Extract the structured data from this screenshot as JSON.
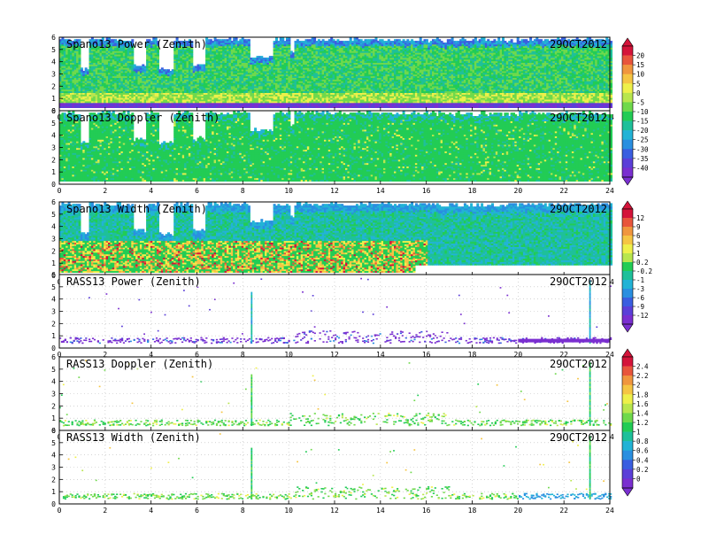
{
  "chart_data": [
    {
      "type": "heatmap",
      "title": "Spano13 Power (Zenith)",
      "date": "29OCT2012",
      "xlim": [
        0,
        24
      ],
      "ylim": [
        0,
        6
      ],
      "x_ticks": [
        0,
        2,
        4,
        6,
        8,
        10,
        12,
        14,
        16,
        18,
        20,
        22,
        24
      ],
      "y_ticks": [
        0,
        1,
        2,
        3,
        4,
        5,
        6
      ],
      "colorbar_group": "power",
      "pattern": "profiler-power",
      "grid": false
    },
    {
      "type": "heatmap",
      "title": "Spano13 Doppler (Zenith)",
      "date": "29OCT2012",
      "xlim": [
        0,
        24
      ],
      "ylim": [
        0,
        6
      ],
      "x_ticks": [
        0,
        2,
        4,
        6,
        8,
        10,
        12,
        14,
        16,
        18,
        20,
        22,
        24
      ],
      "y_ticks": [
        0,
        1,
        2,
        3,
        4,
        5,
        6
      ],
      "colorbar_group": "power",
      "pattern": "profiler-doppler",
      "grid": false
    },
    {
      "type": "heatmap",
      "title": "Spano13 Width (Zenith)",
      "date": "29OCT2012",
      "xlim": [
        0,
        24
      ],
      "ylim": [
        0,
        6
      ],
      "x_ticks": [
        0,
        2,
        4,
        6,
        8,
        10,
        12,
        14,
        16,
        18,
        20,
        22,
        24
      ],
      "y_ticks": [
        0,
        1,
        2,
        3,
        4,
        5,
        6
      ],
      "colorbar_group": "doppler",
      "pattern": "profiler-width",
      "grid": false
    },
    {
      "type": "heatmap",
      "title": "RASS13 Power (Zenith)",
      "date": "29OCT2012",
      "xlim": [
        0,
        24
      ],
      "ylim": [
        0,
        6
      ],
      "x_ticks": [
        0,
        2,
        4,
        6,
        8,
        10,
        12,
        14,
        16,
        18,
        20,
        22,
        24
      ],
      "y_ticks": [
        0,
        1,
        2,
        3,
        4,
        5,
        6
      ],
      "colorbar_group": "doppler",
      "pattern": "rass-power",
      "grid": true
    },
    {
      "type": "heatmap",
      "title": "RASS13 Doppler (Zenith)",
      "date": "29OCT2012",
      "xlim": [
        0,
        24
      ],
      "ylim": [
        0,
        6
      ],
      "x_ticks": [
        0,
        2,
        4,
        6,
        8,
        10,
        12,
        14,
        16,
        18,
        20,
        22,
        24
      ],
      "y_ticks": [
        0,
        1,
        2,
        3,
        4,
        5,
        6
      ],
      "colorbar_group": "width",
      "pattern": "rass-doppler",
      "grid": true
    },
    {
      "type": "heatmap",
      "title": "RASS13 Width (Zenith)",
      "date": "29OCT2012",
      "xlim": [
        0,
        24
      ],
      "ylim": [
        0,
        6
      ],
      "x_ticks": [
        0,
        2,
        4,
        6,
        8,
        10,
        12,
        14,
        16,
        18,
        20,
        22,
        24
      ],
      "y_ticks": [
        0,
        1,
        2,
        3,
        4,
        5,
        6
      ],
      "colorbar_group": "width",
      "pattern": "rass-width",
      "grid": true
    }
  ],
  "colorbars": [
    {
      "name": "power",
      "labels": [
        "20",
        "15",
        "10",
        "5",
        "0",
        "-5",
        "-10",
        "-15",
        "-20",
        "-25",
        "-30",
        "-35",
        "-40"
      ],
      "colors": [
        "#d4143a",
        "#e8553c",
        "#f0963e",
        "#f5c543",
        "#eef04a",
        "#b8e64e",
        "#6fd94c",
        "#22cc55",
        "#1ec09a",
        "#22b3d6",
        "#2a8fe0",
        "#3a5ee0",
        "#5b3fd8",
        "#7a2fd0"
      ]
    },
    {
      "name": "doppler",
      "labels": [
        "12",
        "9",
        "6",
        "3",
        "1",
        "0.2",
        "-0.2",
        "-1",
        "-3",
        "-6",
        "-9",
        "-12"
      ],
      "colors": [
        "#d4143a",
        "#e8553c",
        "#f0963e",
        "#f5c543",
        "#eef04a",
        "#b8e64e",
        "#22cc55",
        "#1ec09a",
        "#22b3d6",
        "#2a8fe0",
        "#3a5ee0",
        "#5b3fd8",
        "#7a2fd0"
      ]
    },
    {
      "name": "width",
      "labels": [
        "2.4",
        "2.2",
        "2",
        "1.8",
        "1.6",
        "1.4",
        "1.2",
        "1",
        "0.8",
        "0.6",
        "0.4",
        "0.2",
        "0"
      ],
      "colors": [
        "#d4143a",
        "#e8553c",
        "#f0963e",
        "#f5c543",
        "#eef04a",
        "#b8e64e",
        "#6fd94c",
        "#22cc55",
        "#1ec09a",
        "#22b3d6",
        "#2a8fe0",
        "#3a5ee0",
        "#5b3fd8",
        "#7a2fd0"
      ]
    }
  ]
}
